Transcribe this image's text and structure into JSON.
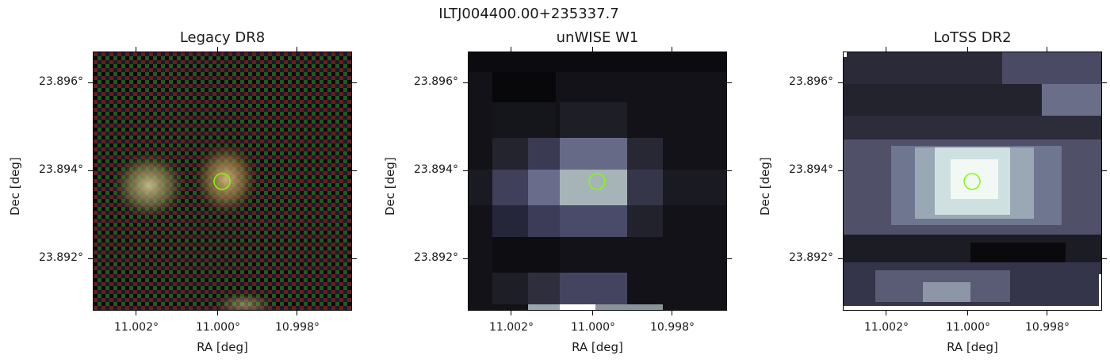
{
  "figure_title": "ILTJ004400.00+235337.7",
  "panels": [
    {
      "title": "Legacy DR8",
      "xlabel": "RA [deg]",
      "ylabel": "Dec [deg]",
      "xticks": [
        "11.002°",
        "11.000°",
        "10.998°"
      ],
      "yticks": [
        "23.896°",
        "23.894°",
        "23.892°"
      ]
    },
    {
      "title": "unWISE W1",
      "xlabel": "RA [deg]",
      "ylabel": "Dec [deg]",
      "xticks": [
        "11.002°",
        "11.000°",
        "10.998°"
      ],
      "yticks": [
        "23.896°",
        "23.894°",
        "23.892°"
      ]
    },
    {
      "title": "LoTSS DR2",
      "xlabel": "RA [deg]",
      "ylabel": "Dec [deg]",
      "xticks": [
        "11.002°",
        "11.000°",
        "10.998°"
      ],
      "yticks": [
        "23.896°",
        "23.894°",
        "23.892°"
      ]
    }
  ],
  "marker_color": "#7fff00"
}
